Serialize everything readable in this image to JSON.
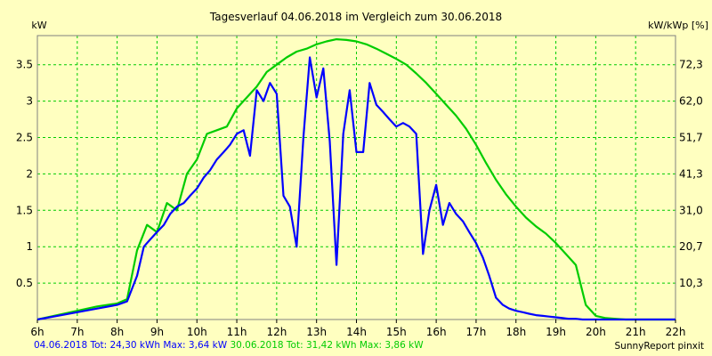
{
  "chart_data": {
    "type": "line",
    "title": "Tagesverlauf 04.06.2018 im Vergleich zum 30.06.2018",
    "ylabel_left": "kW",
    "ylabel_right": "kW/kWp [%]",
    "xlim": [
      6,
      22
    ],
    "ylim": [
      0,
      3.9
    ],
    "x_ticks": [
      6,
      7,
      8,
      9,
      10,
      11,
      12,
      13,
      14,
      15,
      16,
      17,
      18,
      19,
      20,
      21,
      22
    ],
    "x_tick_labels": [
      "6h",
      "7h",
      "8h",
      "9h",
      "10h",
      "11h",
      "12h",
      "13h",
      "14h",
      "15h",
      "16h",
      "17h",
      "18h",
      "19h",
      "20h",
      "21h",
      "22h"
    ],
    "y_ticks": [
      0.5,
      1,
      1.5,
      2,
      2.5,
      3,
      3.5
    ],
    "y_tick_labels": [
      "0.5",
      "1",
      "1.5",
      "2",
      "2.5",
      "3",
      "3.5"
    ],
    "y2_ticks": [
      0.5,
      1,
      1.5,
      2,
      2.5,
      3,
      3.5
    ],
    "y2_tick_labels": [
      "10,3",
      "20,7",
      "31,0",
      "41,3",
      "51,7",
      "62,0",
      "72,3"
    ],
    "grid": true,
    "series": [
      {
        "name": "04.06.2018",
        "color": "#0000ff",
        "x": [
          6.0,
          6.5,
          7.0,
          7.5,
          8.0,
          8.25,
          8.5,
          8.67,
          8.83,
          9.0,
          9.17,
          9.33,
          9.5,
          9.67,
          9.83,
          10.0,
          10.17,
          10.33,
          10.5,
          10.67,
          10.83,
          11.0,
          11.17,
          11.33,
          11.5,
          11.67,
          11.83,
          12.0,
          12.17,
          12.33,
          12.5,
          12.67,
          12.83,
          13.0,
          13.17,
          13.33,
          13.5,
          13.67,
          13.83,
          14.0,
          14.17,
          14.33,
          14.5,
          14.67,
          14.83,
          15.0,
          15.17,
          15.33,
          15.5,
          15.67,
          15.83,
          16.0,
          16.17,
          16.33,
          16.5,
          16.67,
          16.83,
          17.0,
          17.17,
          17.33,
          17.5,
          17.67,
          17.83,
          18.0,
          18.17,
          18.33,
          18.5,
          18.67,
          18.83,
          19.0,
          19.17,
          19.33,
          19.5,
          19.67,
          19.83,
          20.0,
          20.17,
          20.33,
          20.5,
          20.67,
          20.83,
          21.0,
          21.33,
          21.67,
          22.0
        ],
        "y": [
          0.0,
          0.05,
          0.1,
          0.15,
          0.2,
          0.25,
          0.6,
          1.0,
          1.1,
          1.2,
          1.3,
          1.45,
          1.55,
          1.6,
          1.7,
          1.8,
          1.95,
          2.05,
          2.2,
          2.3,
          2.4,
          2.55,
          2.6,
          2.25,
          3.15,
          3.0,
          3.25,
          3.1,
          1.7,
          1.55,
          1.0,
          2.5,
          3.6,
          3.05,
          3.45,
          2.45,
          0.75,
          2.55,
          3.15,
          2.3,
          2.3,
          3.25,
          2.95,
          2.85,
          2.75,
          2.65,
          2.7,
          2.65,
          2.55,
          0.9,
          1.5,
          1.85,
          1.3,
          1.6,
          1.45,
          1.35,
          1.2,
          1.05,
          0.85,
          0.6,
          0.3,
          0.2,
          0.15,
          0.12,
          0.1,
          0.08,
          0.06,
          0.05,
          0.04,
          0.03,
          0.02,
          0.01,
          0.01,
          0.0,
          0.0,
          0.0,
          0.0,
          0.0,
          0.0,
          0.0,
          0.0,
          0.0,
          0.0,
          0.0,
          0.0
        ]
      },
      {
        "name": "30.06.2018",
        "color": "#00cc00",
        "x": [
          6.0,
          6.5,
          7.0,
          7.5,
          8.0,
          8.25,
          8.5,
          8.75,
          9.0,
          9.25,
          9.5,
          9.75,
          10.0,
          10.25,
          10.5,
          10.75,
          11.0,
          11.25,
          11.5,
          11.75,
          12.0,
          12.25,
          12.5,
          12.75,
          13.0,
          13.25,
          13.5,
          13.75,
          14.0,
          14.25,
          14.5,
          14.75,
          15.0,
          15.25,
          15.5,
          15.75,
          16.0,
          16.25,
          16.5,
          16.75,
          17.0,
          17.25,
          17.5,
          17.75,
          18.0,
          18.25,
          18.5,
          18.75,
          19.0,
          19.25,
          19.5,
          19.75,
          20.0,
          20.25,
          20.5,
          20.75,
          21.0,
          21.25,
          21.5,
          21.75,
          22.0
        ],
        "y": [
          0.0,
          0.06,
          0.12,
          0.18,
          0.22,
          0.28,
          0.95,
          1.3,
          1.2,
          1.6,
          1.5,
          2.0,
          2.2,
          2.55,
          2.6,
          2.65,
          2.9,
          3.05,
          3.2,
          3.4,
          3.5,
          3.6,
          3.68,
          3.72,
          3.78,
          3.82,
          3.85,
          3.84,
          3.82,
          3.78,
          3.72,
          3.65,
          3.58,
          3.5,
          3.38,
          3.25,
          3.1,
          2.95,
          2.8,
          2.62,
          2.4,
          2.15,
          1.92,
          1.72,
          1.55,
          1.4,
          1.28,
          1.18,
          1.05,
          0.9,
          0.75,
          0.2,
          0.05,
          0.02,
          0.01,
          0.0,
          0.0,
          0.0,
          0.0,
          0.0,
          0.0
        ]
      }
    ],
    "legend_text": {
      "s1": "04.06.2018 Tot: 24,30 kWh Max: 3,64 kW",
      "s2": "30.06.2018 Tot: 31,42 kWh Max: 3,86 kW"
    },
    "credit": "SunnyReport pinxit"
  },
  "colors": {
    "background": "#ffffc0",
    "grid": "#00cc00",
    "series1": "#0000ff",
    "series2": "#00cc00"
  }
}
